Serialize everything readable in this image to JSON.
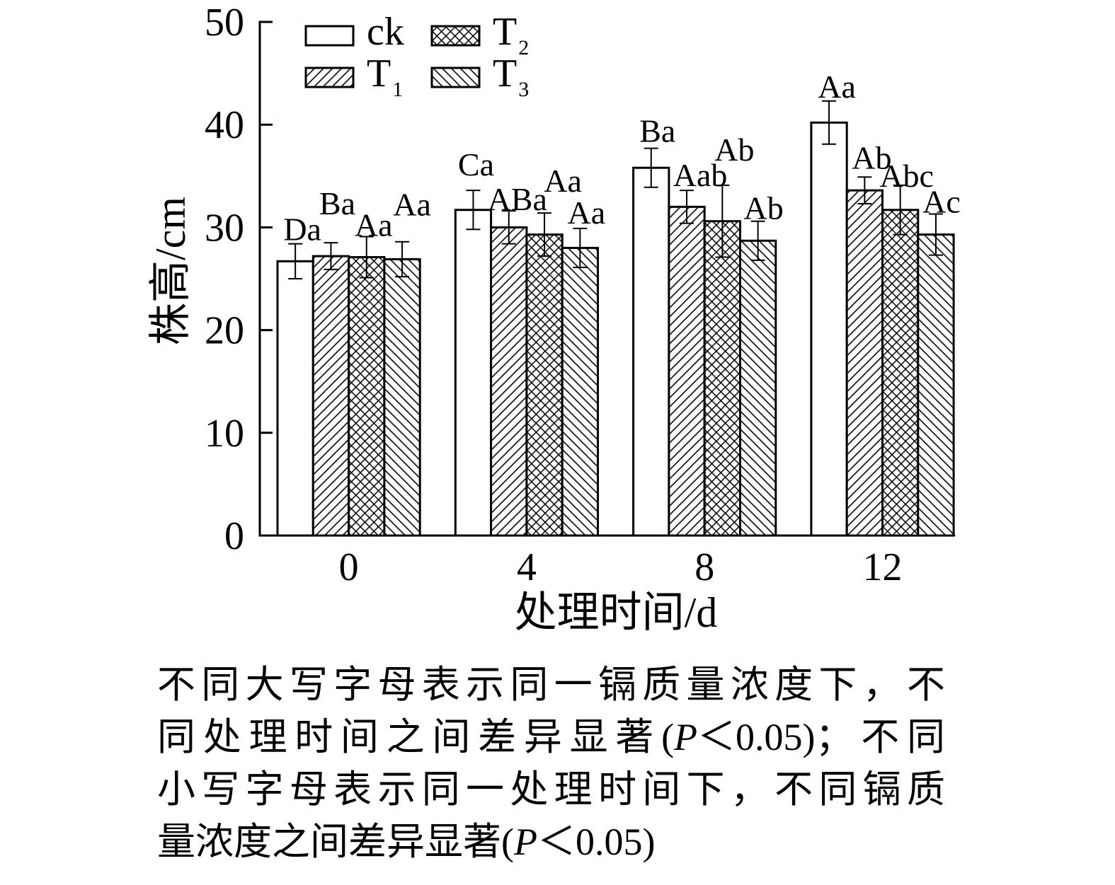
{
  "chart_data": {
    "type": "bar",
    "categories": [
      "0",
      "4",
      "8",
      "12"
    ],
    "xlabel": "处理时间/d",
    "ylabel": "株高/cm",
    "ylim": [
      0,
      50
    ],
    "yticks": [
      0,
      10,
      20,
      30,
      40,
      50
    ],
    "grid": false,
    "legend": "top-left",
    "series": [
      {
        "name": "ck",
        "pattern": "open",
        "values": [
          26.7,
          31.7,
          35.8,
          40.2
        ],
        "errors": [
          1.7,
          1.9,
          1.9,
          2.1
        ],
        "labels": [
          "Da",
          "Ca",
          "Ba",
          "Aa"
        ]
      },
      {
        "name": "T",
        "name_subscript": "1",
        "pattern": "forward-hatch",
        "values": [
          27.2,
          30.0,
          32.0,
          33.6
        ],
        "errors": [
          1.3,
          1.6,
          1.6,
          1.3
        ],
        "labels": [
          "Ba",
          "ABa",
          "Aab",
          "Ab"
        ]
      },
      {
        "name": "T",
        "name_subscript": "2",
        "pattern": "cross-hatch",
        "values": [
          27.1,
          29.3,
          30.6,
          31.7
        ],
        "errors": [
          2.0,
          2.1,
          3.5,
          2.4
        ],
        "labels": [
          "Aa",
          "Aa",
          "Ab",
          "Abc"
        ]
      },
      {
        "name": "T",
        "name_subscript": "3",
        "pattern": "back-hatch",
        "values": [
          26.9,
          28.0,
          28.7,
          29.3
        ],
        "errors": [
          1.7,
          1.9,
          1.9,
          2.0
        ],
        "labels": [
          "Aa",
          "Aa",
          "Ab",
          "Ac"
        ]
      }
    ]
  },
  "colors": {
    "ink": "#000000",
    "paper": "#ffffff"
  },
  "caption": {
    "lines": [
      [
        "不同大写字母表示同一镉质量浓度下，不"
      ],
      [
        "同处理时间之间差异显著(",
        "P",
        "＜0.05)；不同"
      ],
      [
        "小写字母表示同一处理时间下，不同镉质"
      ],
      [
        "量浓度之间差异显著(",
        "P",
        "＜0.05)"
      ]
    ]
  }
}
